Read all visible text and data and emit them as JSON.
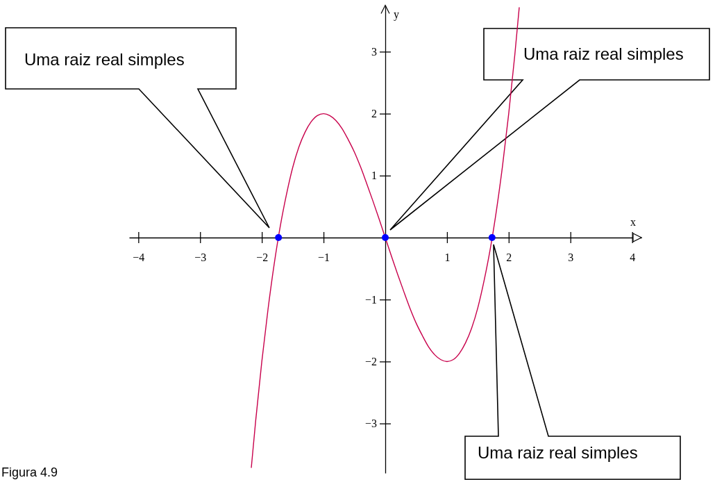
{
  "chart_data": {
    "type": "line",
    "xlabel": "x",
    "ylabel": "y",
    "xlim": [
      -4.15,
      4.15
    ],
    "ylim": [
      -3.8,
      3.75
    ],
    "xticks": [
      -4,
      -3,
      -2,
      -1,
      1,
      2,
      3,
      4
    ],
    "yticks": [
      -3,
      -2,
      -1,
      1,
      2,
      3
    ],
    "series": [
      {
        "type": "line",
        "color": "#c8004b",
        "x": [
          -2.17,
          -2.1,
          -2.0,
          -1.9,
          -1.8,
          -1.7,
          -1.6,
          -1.5,
          -1.4,
          -1.3,
          -1.2,
          -1.1,
          -1.0,
          -0.9,
          -0.8,
          -0.7,
          -0.6,
          -0.5,
          -0.4,
          -0.3,
          -0.2,
          -0.1,
          0,
          0.1,
          0.2,
          0.3,
          0.4,
          0.5,
          0.6,
          0.7,
          0.8,
          0.9,
          1.0,
          1.1,
          1.2,
          1.3,
          1.4,
          1.5,
          1.6,
          1.7,
          1.8,
          1.9,
          2.0,
          2.1,
          2.17
        ],
        "values": [
          -3.71,
          -2.96,
          -2,
          -1.16,
          -0.43,
          0.19,
          0.7,
          1.13,
          1.46,
          1.7,
          1.87,
          1.97,
          2,
          1.97,
          1.89,
          1.76,
          1.58,
          1.38,
          1.14,
          0.87,
          0.59,
          0.3,
          0,
          -0.3,
          -0.59,
          -0.87,
          -1.14,
          -1.38,
          -1.58,
          -1.76,
          -1.89,
          -1.97,
          -2,
          -1.97,
          -1.87,
          -1.7,
          -1.46,
          -1.13,
          -0.7,
          -0.19,
          0.43,
          1.16,
          2,
          2.96,
          3.71
        ]
      },
      {
        "type": "scatter",
        "color": "#0000ff",
        "marker": "circle",
        "x": [
          -1.73,
          0,
          1.73
        ],
        "values": [
          0,
          0,
          0
        ]
      }
    ],
    "annotations": [
      "Uma raiz real simples",
      "Uma raiz real simples",
      "Uma raiz real simples",
      "Figura 4.9"
    ]
  }
}
